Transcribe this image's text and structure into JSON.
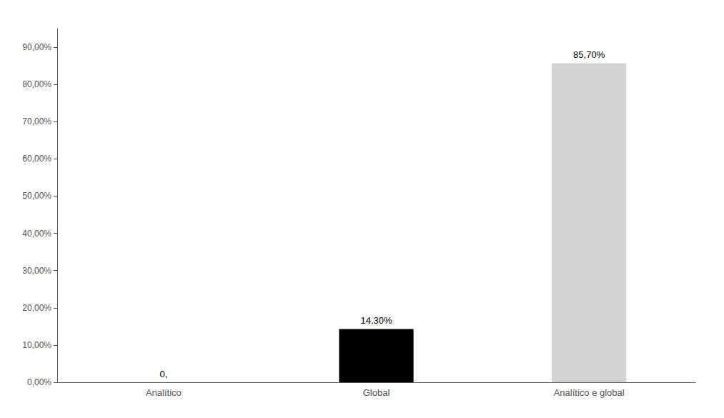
{
  "chart_data": {
    "type": "bar",
    "categories": [
      "Analítico",
      "Global",
      "Analítico e global"
    ],
    "values": [
      0.0,
      0.143,
      0.857
    ],
    "value_labels": [
      "0,",
      "14,30%",
      "85,70%"
    ],
    "data_labels": true,
    "colors": [
      "#000000",
      "#000000",
      "#d3d3d3"
    ],
    "ylim": [
      0,
      0.95
    ],
    "yticks": [
      {
        "value": 0.0,
        "label": "0,00%"
      },
      {
        "value": 0.1,
        "label": "10,00%"
      },
      {
        "value": 0.2,
        "label": "20,00%"
      },
      {
        "value": 0.3,
        "label": "30,00%"
      },
      {
        "value": 0.4,
        "label": "40,00%"
      },
      {
        "value": 0.5,
        "label": "50,00%"
      },
      {
        "value": 0.6,
        "label": "60,00%"
      },
      {
        "value": 0.7,
        "label": "70,00%"
      },
      {
        "value": 0.8,
        "label": "80,00%"
      },
      {
        "value": 0.9,
        "label": "90,00%"
      }
    ],
    "grid": false
  }
}
